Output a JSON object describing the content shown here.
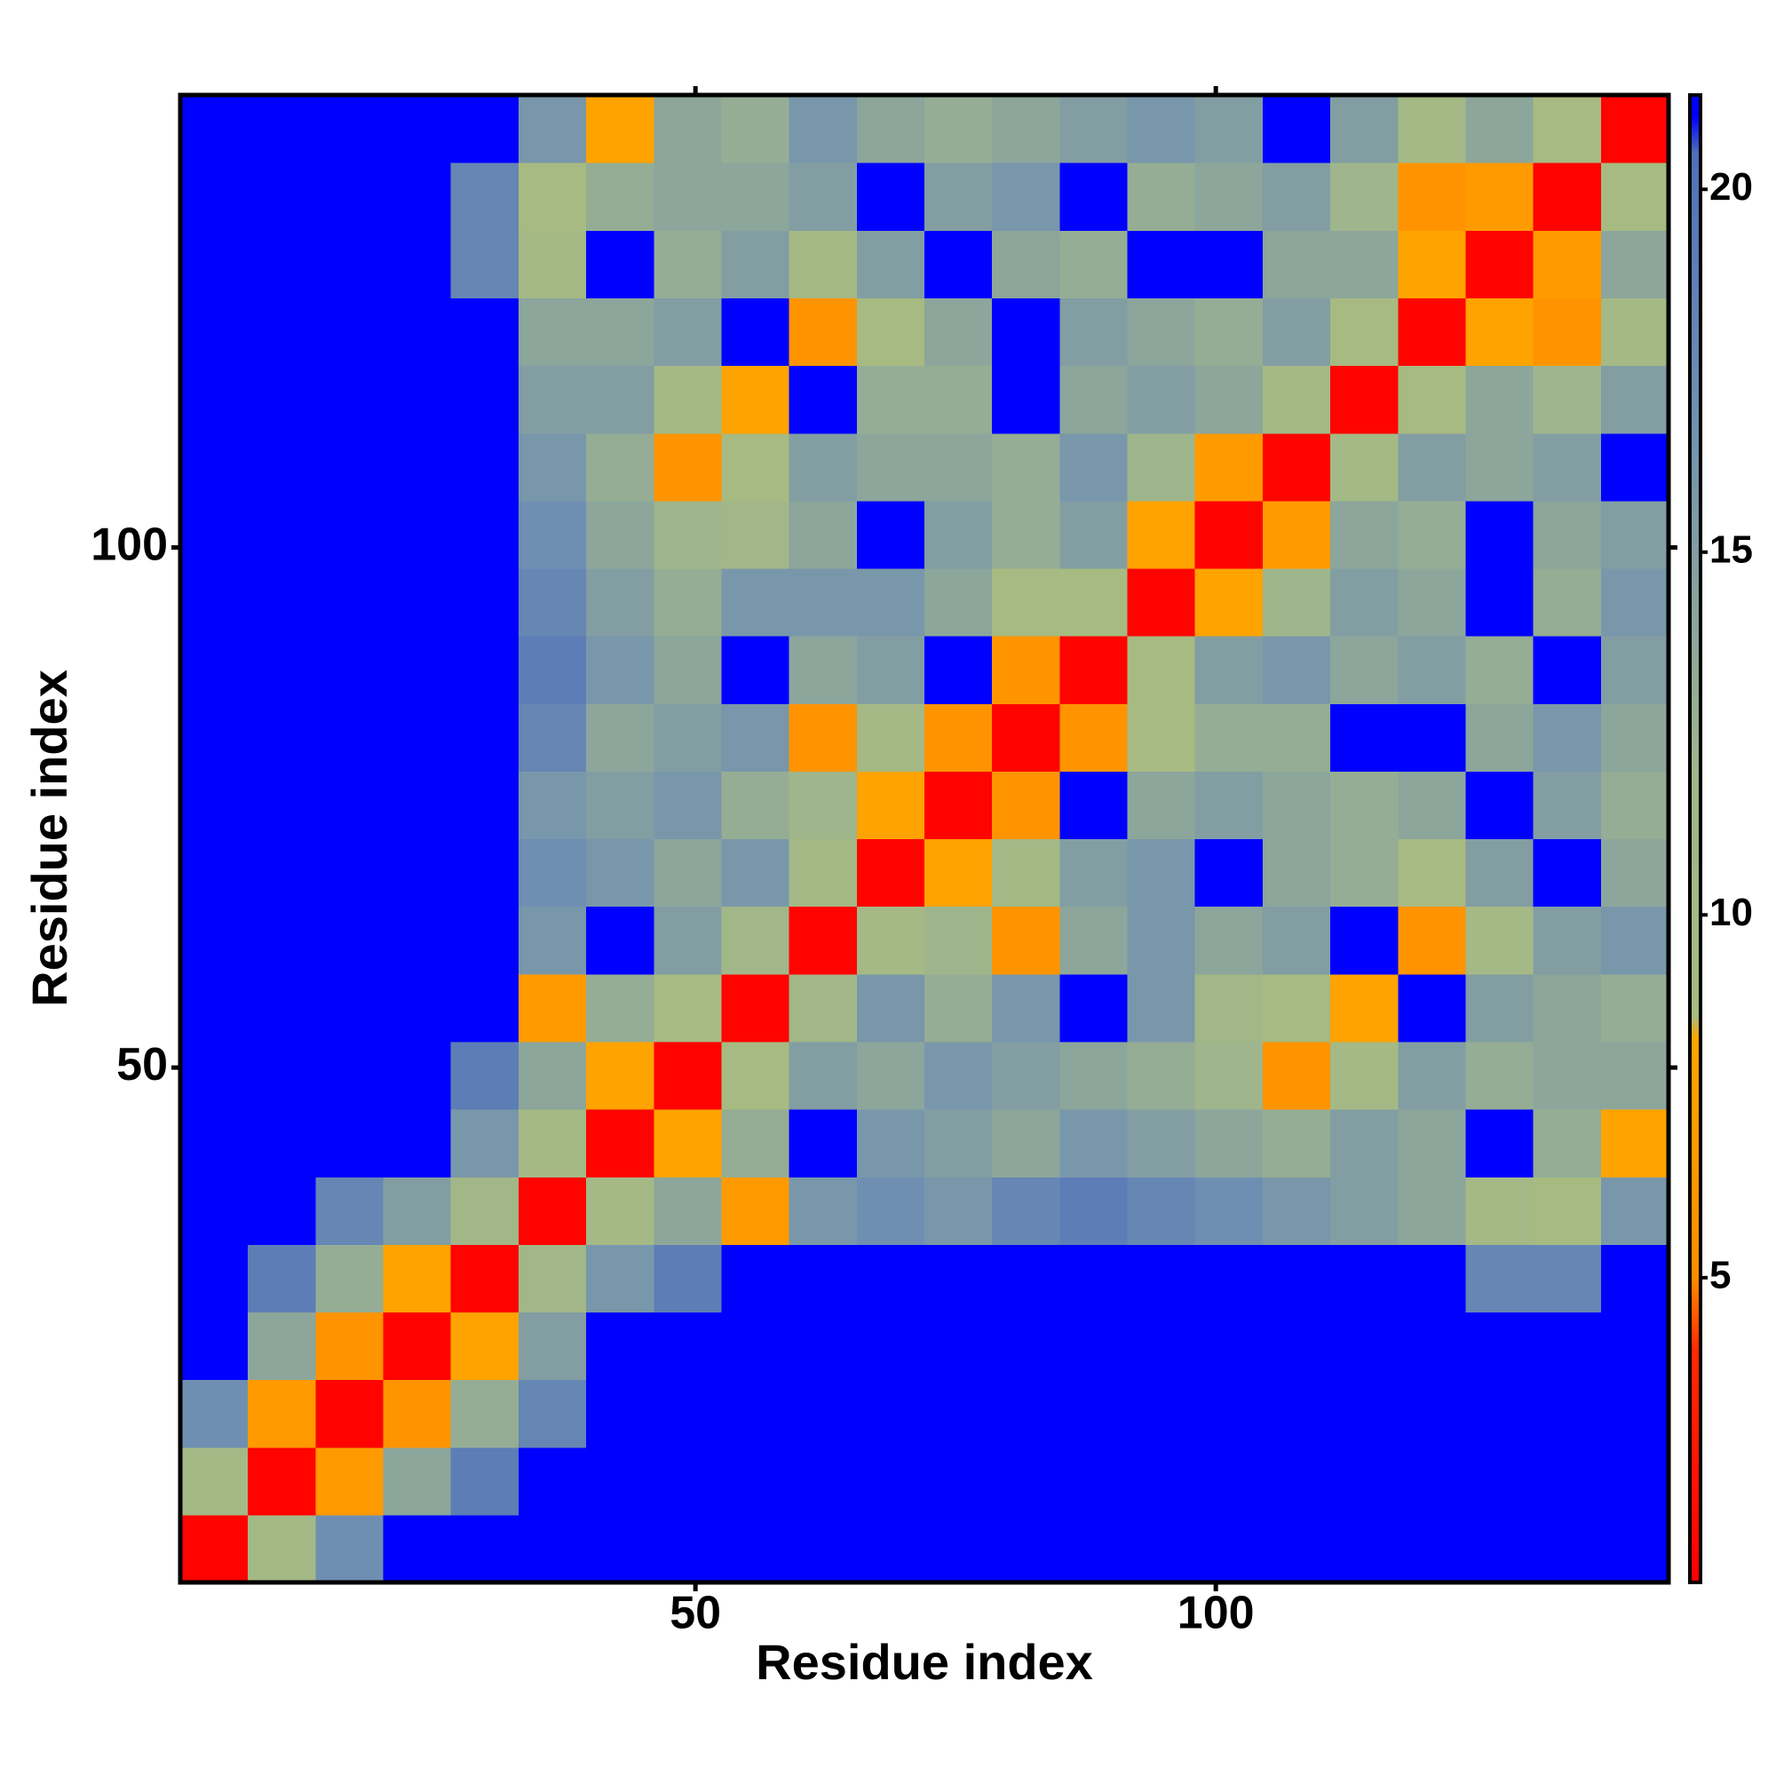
{
  "chart_data": {
    "type": "heatmap",
    "xlabel": "Residue index",
    "ylabel": "Residue index",
    "x": [
      3.75,
      10.25,
      16.75,
      23.25,
      29.75,
      36.25,
      42.75,
      49.25,
      55.75,
      62.25,
      68.75,
      75.25,
      81.75,
      88.25,
      94.75,
      101.25,
      107.75,
      114.25,
      120.75,
      127.25,
      133.75,
      140.25
    ],
    "y": [
      3.75,
      10.25,
      16.75,
      23.25,
      29.75,
      36.25,
      42.75,
      49.25,
      55.75,
      62.25,
      68.75,
      75.25,
      81.75,
      88.25,
      94.75,
      101.25,
      107.75,
      114.25,
      120.75,
      127.25,
      133.75,
      140.25
    ],
    "z": [
      [
        1,
        10,
        17,
        21,
        21,
        21,
        21,
        21,
        21,
        21,
        21,
        21,
        21,
        21,
        21,
        21,
        21,
        21,
        21,
        21,
        21,
        21
      ],
      [
        10,
        1,
        7,
        14,
        19,
        21,
        21,
        21,
        21,
        21,
        21,
        21,
        21,
        21,
        21,
        21,
        21,
        21,
        21,
        21,
        21,
        21
      ],
      [
        17,
        7,
        1,
        6,
        13,
        18,
        21,
        21,
        21,
        21,
        21,
        21,
        21,
        21,
        21,
        21,
        21,
        21,
        21,
        21,
        21,
        21
      ],
      [
        21,
        14,
        6,
        1,
        8,
        15,
        21,
        21,
        21,
        21,
        21,
        21,
        21,
        21,
        21,
        21,
        21,
        21,
        21,
        21,
        21,
        21
      ],
      [
        21,
        19,
        13,
        8,
        1,
        11,
        16,
        19,
        21,
        21,
        21,
        21,
        21,
        21,
        21,
        21,
        21,
        21,
        21,
        18,
        18,
        21
      ],
      [
        21,
        21,
        18,
        15,
        11,
        1,
        10,
        14,
        7,
        16,
        17,
        16,
        18,
        19,
        18,
        17,
        16,
        15,
        14,
        10,
        9,
        16
      ],
      [
        21,
        21,
        21,
        21,
        16,
        10,
        1,
        8,
        13,
        21,
        16,
        15,
        14,
        16,
        15,
        14,
        13,
        15,
        14,
        21,
        13,
        8
      ],
      [
        21,
        21,
        21,
        21,
        19,
        14,
        8,
        1,
        9,
        15,
        14,
        16,
        15,
        14,
        13,
        12,
        6,
        10,
        15,
        13,
        14,
        14
      ],
      [
        21,
        21,
        21,
        21,
        21,
        7,
        13,
        9,
        1,
        11,
        16,
        13,
        16,
        21,
        16,
        11,
        9,
        8,
        21,
        15,
        14,
        13
      ],
      [
        21,
        21,
        21,
        21,
        21,
        16,
        21,
        15,
        11,
        1,
        10,
        12,
        6,
        14,
        16,
        14,
        15,
        21,
        6,
        10,
        15,
        16
      ],
      [
        21,
        21,
        21,
        21,
        21,
        17,
        16,
        14,
        16,
        10,
        1,
        8,
        10,
        15,
        16,
        21,
        14,
        13,
        9,
        15,
        21,
        14
      ],
      [
        21,
        21,
        21,
        21,
        21,
        16,
        15,
        16,
        13,
        12,
        8,
        1,
        6,
        21,
        14,
        15,
        14,
        13,
        14,
        21,
        15,
        13
      ],
      [
        21,
        21,
        21,
        21,
        21,
        18,
        14,
        15,
        16,
        6,
        10,
        6,
        1,
        6,
        9,
        13,
        13,
        21,
        21,
        14,
        16,
        14
      ],
      [
        21,
        21,
        21,
        21,
        21,
        19,
        16,
        14,
        21,
        14,
        15,
        21,
        6,
        1,
        9,
        15,
        16,
        14,
        15,
        13,
        21,
        15
      ],
      [
        21,
        21,
        21,
        21,
        21,
        18,
        15,
        13,
        16,
        16,
        16,
        14,
        9,
        9,
        1,
        8,
        12,
        15,
        14,
        21,
        13,
        16
      ],
      [
        21,
        21,
        21,
        21,
        21,
        17,
        14,
        12,
        11,
        14,
        21,
        15,
        13,
        15,
        8,
        1,
        7,
        14,
        13,
        21,
        14,
        15
      ],
      [
        21,
        21,
        21,
        21,
        21,
        16,
        13,
        6,
        9,
        15,
        14,
        14,
        13,
        16,
        12,
        7,
        1,
        10,
        15,
        14,
        15,
        21
      ],
      [
        21,
        21,
        21,
        21,
        21,
        15,
        15,
        10,
        8,
        21,
        13,
        13,
        21,
        14,
        15,
        14,
        10,
        1,
        9,
        14,
        12,
        15
      ],
      [
        21,
        21,
        21,
        21,
        21,
        14,
        14,
        15,
        21,
        6,
        9,
        14,
        21,
        15,
        14,
        13,
        15,
        9,
        1,
        8,
        6,
        10
      ],
      [
        21,
        21,
        21,
        21,
        18,
        10,
        21,
        13,
        15,
        10,
        15,
        21,
        14,
        13,
        21,
        21,
        14,
        14,
        8,
        1,
        7,
        14
      ],
      [
        21,
        21,
        21,
        21,
        18,
        9,
        13,
        14,
        14,
        15,
        21,
        15,
        16,
        21,
        13,
        14,
        15,
        12,
        6,
        7,
        1,
        9
      ],
      [
        21,
        21,
        21,
        21,
        21,
        16,
        8,
        14,
        13,
        16,
        14,
        13,
        14,
        15,
        16,
        15,
        21,
        15,
        10,
        14,
        9,
        1
      ]
    ],
    "xlim": [
      0.5,
      143.5
    ],
    "ylim": [
      0.5,
      143.5
    ],
    "xticks": [
      50,
      100
    ],
    "yticks": [
      50,
      100
    ],
    "zlim": [
      0.8,
      21.3
    ],
    "zticks": [
      5,
      10,
      15,
      20
    ],
    "colorscale": [
      [
        0.8,
        "#ff0000"
      ],
      [
        4,
        "#ff2a00"
      ],
      [
        5,
        "#ff8c00"
      ],
      [
        8.3,
        "#ffa500"
      ],
      [
        8.6,
        "#a8bb80"
      ],
      [
        12,
        "#9fb58c"
      ],
      [
        17,
        "#6f8fb2"
      ],
      [
        20.5,
        "#4f70ba"
      ],
      [
        21,
        "#0000ff"
      ]
    ]
  }
}
